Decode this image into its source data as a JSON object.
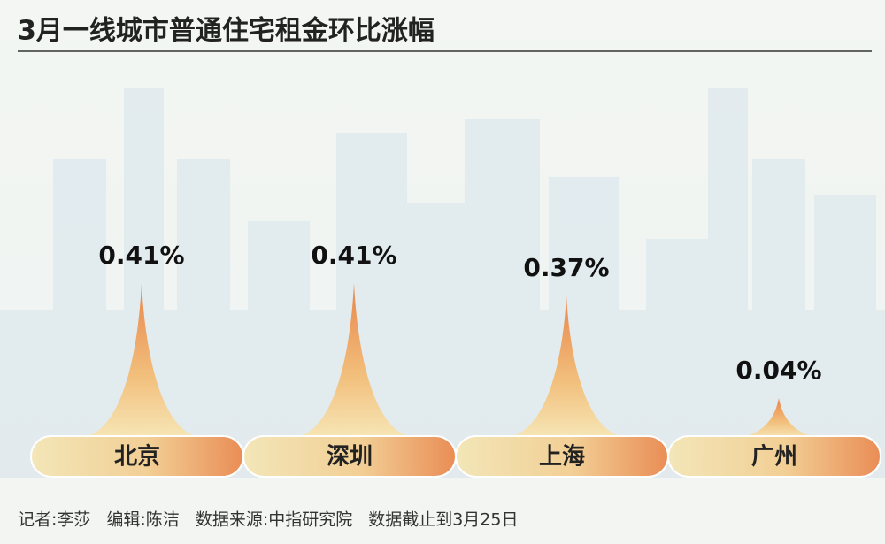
{
  "chart_data": {
    "type": "spike",
    "title": "3月一线城市普通住宅租金环比涨幅",
    "categories": [
      "北京",
      "深圳",
      "上海",
      "广州"
    ],
    "values": [
      0.41,
      0.41,
      0.37,
      0.04
    ],
    "value_labels": [
      "0.41%",
      "0.41%",
      "0.37%",
      "0.04%"
    ],
    "credits": [
      "记者:李莎",
      "编辑:陈洁",
      "数据来源:中指研究院",
      "数据截止到3月25日"
    ]
  }
}
